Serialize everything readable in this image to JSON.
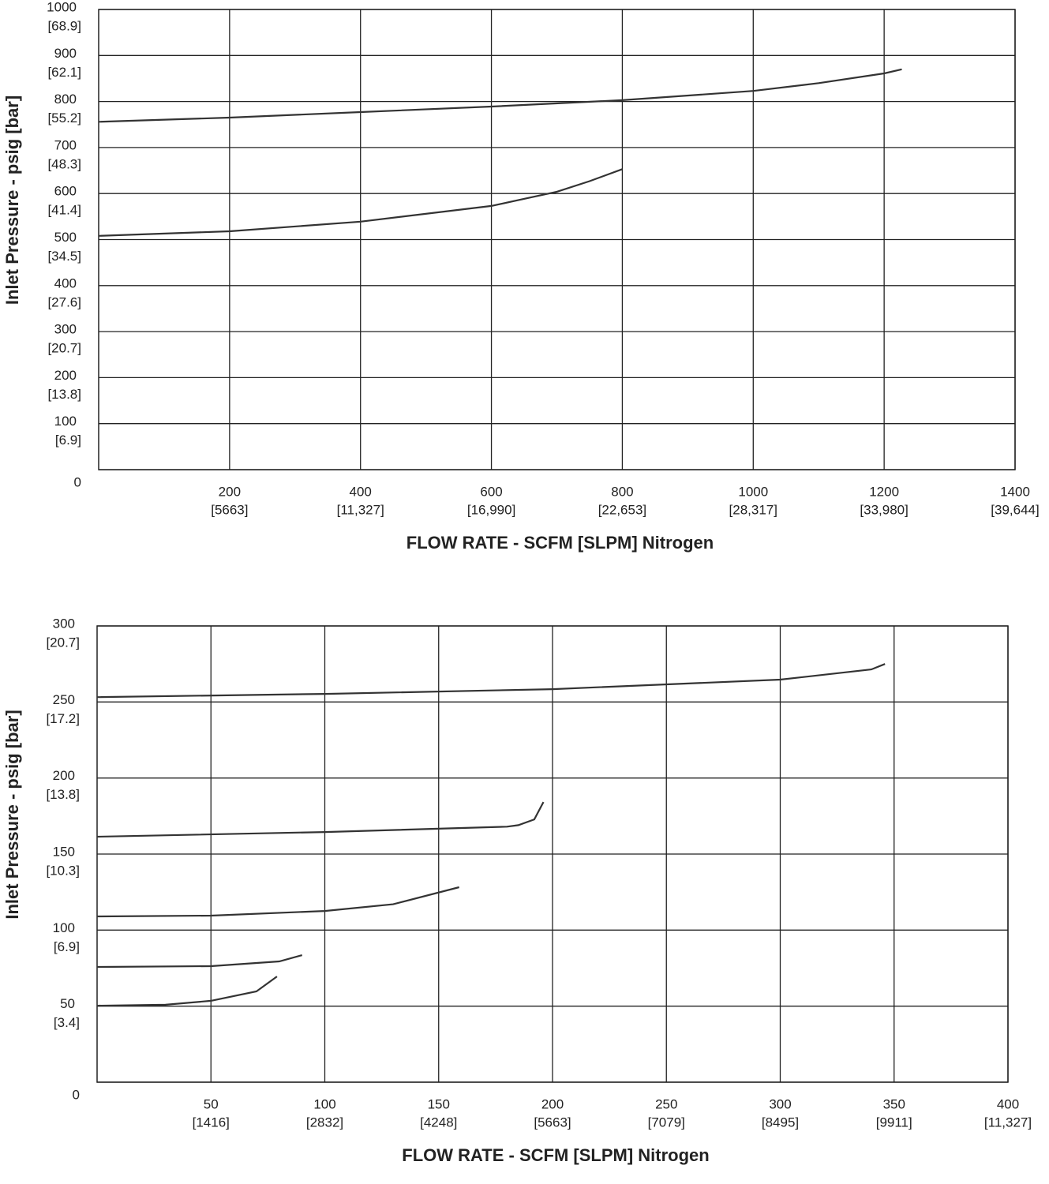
{
  "chart_data": [
    {
      "type": "line",
      "xlabel": "FLOW RATE - SCFM [SLPM] Nitrogen",
      "ylabel": "Inlet Pressure - psig [bar]",
      "grid": true,
      "xlim": [
        0,
        1400
      ],
      "ylim": [
        0,
        1000
      ],
      "xticks": [
        {
          "value": 200,
          "label": [
            "200",
            "[5663]"
          ]
        },
        {
          "value": 400,
          "label": [
            "400",
            "[11,327]"
          ]
        },
        {
          "value": 600,
          "label": [
            "600",
            "[16,990]"
          ]
        },
        {
          "value": 800,
          "label": [
            "800",
            "[22,653]"
          ]
        },
        {
          "value": 1000,
          "label": [
            "1000",
            "[28,317]"
          ]
        },
        {
          "value": 1200,
          "label": [
            "1200",
            "[33,980]"
          ]
        },
        {
          "value": 1400,
          "label": [
            "1400",
            "[39,644]"
          ]
        }
      ],
      "yticks": [
        0,
        {
          "value": 100,
          "label": [
            "100",
            "[6.9]"
          ]
        },
        {
          "value": 200,
          "label": [
            "200",
            "[13.8]"
          ]
        },
        {
          "value": 300,
          "label": [
            "300",
            "[20.7]"
          ]
        },
        {
          "value": 400,
          "label": [
            "400",
            "[27.6]"
          ]
        },
        {
          "value": 500,
          "label": [
            "500",
            "[34.5]"
          ]
        },
        {
          "value": 600,
          "label": [
            "600",
            "[41.4]"
          ]
        },
        {
          "value": 700,
          "label": [
            "700",
            "[48.3]"
          ]
        },
        {
          "value": 800,
          "label": [
            "800",
            "[55.2]"
          ]
        },
        {
          "value": 900,
          "label": [
            "900",
            "[62.1]"
          ]
        },
        {
          "value": 1000,
          "label": [
            "1000",
            "[68.9]"
          ]
        }
      ],
      "series": [
        {
          "color": "#333333",
          "x": [
            0,
            200,
            400,
            600,
            800,
            1000,
            1100,
            1200,
            1227
          ],
          "values": [
            756,
            765,
            777,
            789,
            803,
            823,
            840,
            861,
            870
          ]
        },
        {
          "color": "#333333",
          "x": [
            0,
            200,
            400,
            600,
            700,
            750,
            800
          ],
          "values": [
            508,
            518,
            539,
            573,
            604,
            627,
            653
          ]
        }
      ]
    },
    {
      "type": "line",
      "xlabel": "FLOW RATE - SCFM [SLPM] Nitrogen",
      "ylabel": "Inlet Pressure - psig [bar]",
      "grid": true,
      "xlim": [
        0,
        400
      ],
      "ylim": [
        0,
        300
      ],
      "xticks": [
        {
          "value": 50,
          "label": [
            "50",
            "[1416]"
          ]
        },
        {
          "value": 100,
          "label": [
            "100",
            "[2832]"
          ]
        },
        {
          "value": 150,
          "label": [
            "150",
            "[4248]"
          ]
        },
        {
          "value": 200,
          "label": [
            "200",
            "[5663]"
          ]
        },
        {
          "value": 250,
          "label": [
            "250",
            "[7079]"
          ]
        },
        {
          "value": 300,
          "label": [
            "300",
            "[8495]"
          ]
        },
        {
          "value": 350,
          "label": [
            "350",
            "[9911]"
          ]
        },
        {
          "value": 400,
          "label": [
            "400",
            "[11,327]"
          ]
        }
      ],
      "yticks": [
        0,
        {
          "value": 50,
          "label": [
            "50",
            "[3.4]"
          ]
        },
        {
          "value": 100,
          "label": [
            "100",
            "[6.9]"
          ]
        },
        {
          "value": 150,
          "label": [
            "150",
            "[10.3]"
          ]
        },
        {
          "value": 200,
          "label": [
            "200",
            "[13.8]"
          ]
        },
        {
          "value": 250,
          "label": [
            "250",
            "[17.2]"
          ]
        },
        {
          "value": 300,
          "label": [
            "300",
            "[20.7]"
          ]
        }
      ],
      "series": [
        {
          "color": "#333333",
          "x": [
            0,
            100,
            200,
            300,
            340,
            346
          ],
          "values": [
            253.2,
            255.3,
            258.4,
            264.7,
            271.4,
            275
          ]
        },
        {
          "color": "#333333",
          "x": [
            0,
            100,
            180,
            185,
            192,
            196
          ],
          "values": [
            161.4,
            164.5,
            168,
            169,
            172.8,
            184.2
          ]
        },
        {
          "color": "#333333",
          "x": [
            0,
            50,
            100,
            130,
            159
          ],
          "values": [
            109,
            109.5,
            112.6,
            117,
            128.2
          ]
        },
        {
          "color": "#333333",
          "x": [
            0,
            50,
            80,
            90
          ],
          "values": [
            75.8,
            76.3,
            79.4,
            83.5
          ]
        },
        {
          "color": "#333333",
          "x": [
            0,
            30,
            50,
            70,
            79
          ],
          "values": [
            50.3,
            50.9,
            53.5,
            59.7,
            69.5
          ]
        }
      ]
    }
  ]
}
